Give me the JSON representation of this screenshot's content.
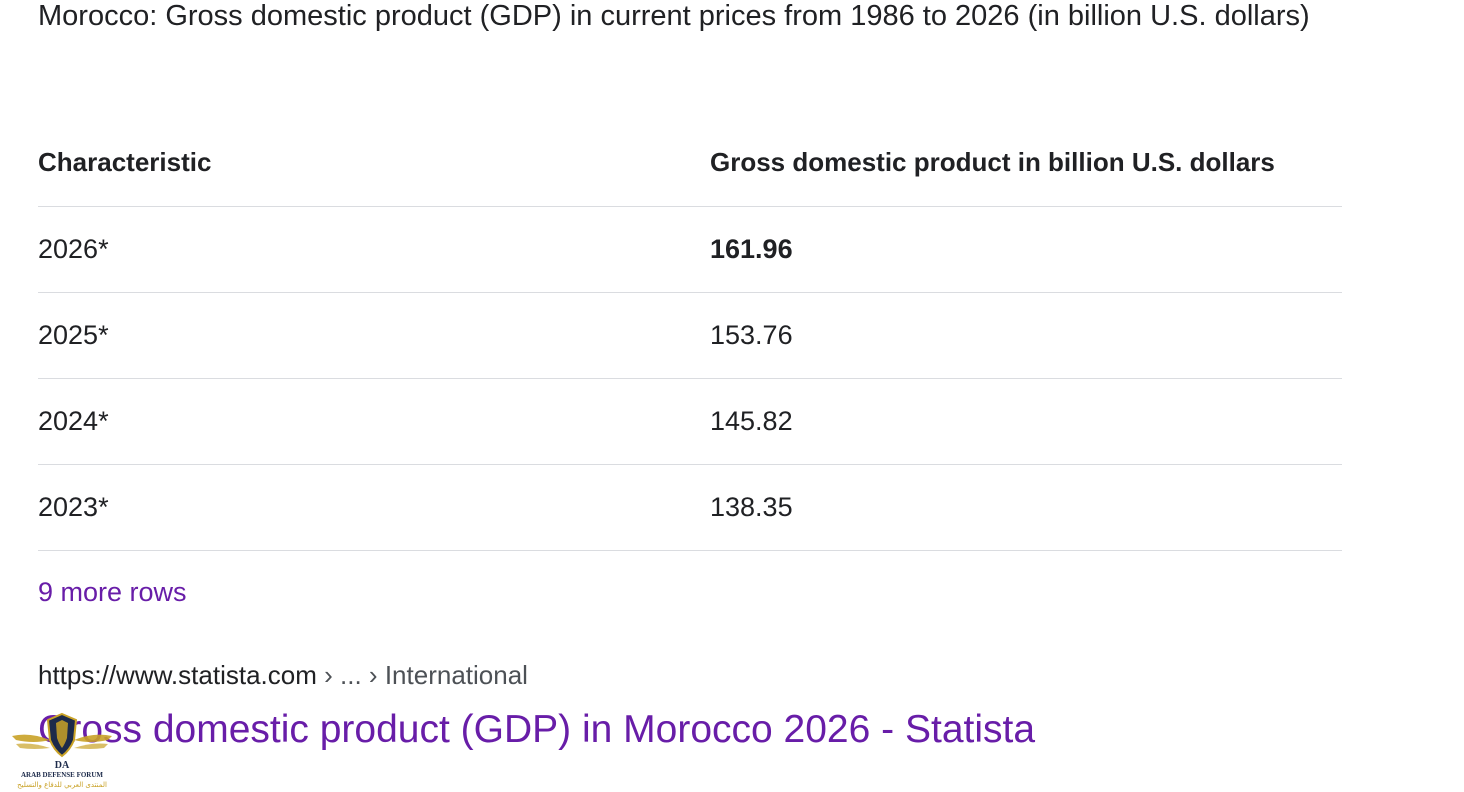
{
  "snippet": {
    "title": "Morocco: Gross domestic product (GDP) in current prices from 1986 to 2026 (in billion U.S. dollars)"
  },
  "table": {
    "headers": [
      "Characteristic",
      "Gross domestic product in billion U.S. dollars"
    ],
    "rows": [
      [
        "2026*",
        "161.96"
      ],
      [
        "2025*",
        "153.76"
      ],
      [
        "2024*",
        "145.82"
      ],
      [
        "2023*",
        "138.35"
      ]
    ]
  },
  "more_rows_label": "9 more rows",
  "result": {
    "breadcrumb_url": "https://www.statista.com",
    "breadcrumb_sep1": "›",
    "breadcrumb_ellipsis": "...",
    "breadcrumb_sep2": "›",
    "breadcrumb_section": "International",
    "title": "Gross domestic product (GDP) in Morocco 2026 - Statista"
  },
  "watermark": {
    "logo_letters": "DA",
    "logo_text": "ARAB DEFENSE FORUM",
    "logo_subtext": "المنتدى العربي للدفاع والتسليح",
    "gold": "#c9a227",
    "navy": "#1c2a4a"
  }
}
